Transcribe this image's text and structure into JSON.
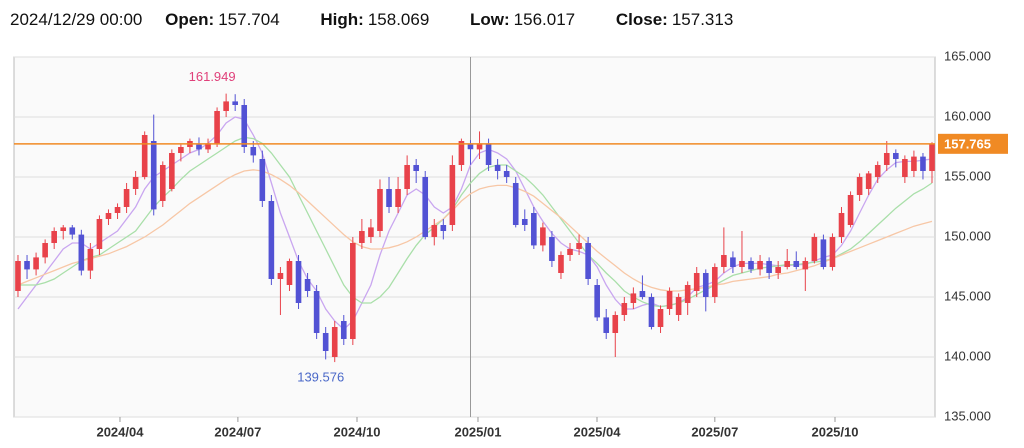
{
  "header": {
    "date": "2024/12/29 00:00",
    "fields": [
      {
        "label": "Open:",
        "value": "157.704"
      },
      {
        "label": "High:",
        "value": "158.069"
      },
      {
        "label": "Low:",
        "value": "156.017"
      },
      {
        "label": "Close:",
        "value": "157.313"
      }
    ]
  },
  "chart_data": {
    "type": "candlestick",
    "up_color": "#e8424a",
    "down_color": "#5252d4",
    "open": [
      145.5,
      148,
      147.3,
      148.3,
      149.5,
      150.5,
      150.8,
      150.2,
      147.2,
      149,
      151.5,
      152,
      152.5,
      154,
      155,
      158,
      153,
      154,
      157,
      157.5,
      157.7,
      157.3,
      157.8,
      160.5,
      161.3,
      161,
      157.5,
      156.5,
      153,
      146.5,
      146,
      148,
      146.5,
      145.5,
      142,
      140,
      143,
      141.5,
      149.5,
      150,
      150.5,
      154,
      152.5,
      154,
      156,
      155,
      150,
      151,
      151,
      156,
      157.704,
      157.3,
      157.8,
      156,
      155.5,
      154.5,
      151.5,
      152,
      149.3,
      150,
      147,
      148.5,
      149,
      149.5,
      146,
      143.3,
      142,
      143.5,
      144.5,
      145.5,
      145,
      142.5,
      144,
      143.5,
      144.5,
      145.5,
      147,
      145,
      147.5,
      148.3,
      147.5,
      148,
      147.3,
      148,
      147,
      147.5,
      148,
      147.3,
      148,
      149.8,
      147.5,
      150,
      151,
      153.5,
      154,
      155,
      156,
      157,
      155,
      155.5,
      156.7,
      155.5
    ],
    "high": [
      148.5,
      148.5,
      148.7,
      149.8,
      150.8,
      151,
      151,
      150.6,
      149.5,
      151.8,
      152.3,
      152.8,
      154.5,
      155.5,
      158.8,
      160.2,
      156.3,
      157.3,
      157.7,
      158.2,
      158.3,
      158.2,
      160.8,
      161.949,
      161.9,
      161.5,
      158,
      157.2,
      153.5,
      147.5,
      148.2,
      148.5,
      147,
      146,
      142.5,
      143,
      143.5,
      150,
      151.5,
      151.5,
      154.8,
      155,
      155,
      156.8,
      156.5,
      155.5,
      151.5,
      151.5,
      156.8,
      158.2,
      158.069,
      158.8,
      158.2,
      156.5,
      156,
      155,
      152.3,
      152.5,
      151.2,
      150.5,
      148.8,
      149.5,
      150.2,
      150,
      146.5,
      144,
      143.8,
      145,
      145.8,
      146.8,
      145.3,
      144.3,
      145.8,
      145.3,
      146.3,
      147.5,
      147.3,
      147.8,
      150.8,
      148.8,
      150.5,
      148.3,
      148.5,
      148.3,
      148,
      149,
      148.8,
      148.3,
      150.3,
      150.2,
      150.3,
      152.5,
      153.8,
      155.3,
      155.5,
      156.3,
      158,
      157.3,
      156.8,
      157.2,
      157,
      157.9
    ],
    "low": [
      145,
      146.5,
      146.8,
      147.8,
      149,
      149.8,
      149.8,
      146.8,
      146.5,
      148.5,
      151,
      151.5,
      152,
      153.5,
      154.8,
      151.8,
      152.5,
      153.8,
      156.3,
      157,
      156.8,
      157,
      157.5,
      160,
      160.5,
      157,
      156.2,
      152.5,
      146,
      143.5,
      145.5,
      144,
      145,
      141.5,
      139.8,
      139.576,
      141,
      141,
      149,
      149.5,
      150,
      152,
      152,
      153.5,
      154.5,
      149.8,
      149.3,
      149.8,
      150.5,
      155.5,
      156.017,
      156.5,
      155.5,
      154.8,
      154.5,
      150.8,
      150.5,
      149,
      148.8,
      147.5,
      146.5,
      148,
      148.5,
      146,
      143,
      141.5,
      140,
      143,
      144,
      144.8,
      142.3,
      142,
      143.5,
      143,
      143.5,
      145,
      143.8,
      144.5,
      147,
      147,
      147,
      147,
      146.8,
      146.5,
      146.5,
      147.3,
      147.3,
      145.5,
      147.8,
      147.3,
      147.2,
      149.5,
      150.8,
      153,
      153.5,
      154.5,
      155.5,
      155.8,
      154.5,
      155,
      154.8,
      154.5
    ],
    "close": [
      148,
      147.3,
      148.3,
      149.5,
      150.5,
      150.8,
      150.2,
      147.2,
      149,
      151.5,
      152,
      152.5,
      154,
      155,
      158.5,
      152.3,
      156,
      157,
      157.5,
      158,
      157.3,
      157.8,
      160.5,
      161.3,
      161,
      157.5,
      156.8,
      153,
      146.5,
      147,
      148,
      144.5,
      145.5,
      142,
      140.5,
      142.5,
      141.5,
      149.5,
      150.5,
      150.8,
      154,
      152.5,
      154,
      156,
      155.5,
      150,
      151,
      150.5,
      156,
      158,
      157.313,
      157.8,
      156,
      155.5,
      155,
      151,
      151,
      149.3,
      150.8,
      148,
      148.5,
      149,
      149.5,
      146.5,
      143.3,
      142,
      143.5,
      144.5,
      145.3,
      145,
      142.5,
      144,
      145.5,
      145,
      146,
      147,
      145,
      147.5,
      148.5,
      147.5,
      148,
      147.3,
      148,
      147,
      147.5,
      148,
      147.5,
      148,
      150,
      147.5,
      150,
      152,
      153.5,
      155,
      155.3,
      156,
      157,
      156.5,
      156.5,
      156.7,
      155.5,
      157.765
    ],
    "series": [
      {
        "color": "#c9a6f0",
        "values": [
          144,
          145,
          146,
          147,
          148,
          149,
          149.5,
          149.5,
          149,
          149.5,
          150,
          150.5,
          151.5,
          152.5,
          154,
          155,
          155.5,
          156,
          156.5,
          157,
          157.3,
          157.8,
          158.5,
          159.5,
          160,
          159.8,
          158.5,
          157,
          154.5,
          152,
          150,
          148,
          146.5,
          145.5,
          144,
          143,
          142.3,
          143,
          144.5,
          146,
          148.5,
          150.5,
          152,
          153.5,
          154,
          153.5,
          152.5,
          152,
          152.5,
          154,
          156,
          157,
          157.3,
          157,
          156.5,
          155.5,
          154,
          152.5,
          151.3,
          150.3,
          149.5,
          149,
          148.8,
          148.5,
          147.5,
          146,
          144.8,
          144,
          144,
          144.3,
          144.5,
          144.2,
          144.3,
          144.5,
          145,
          145.8,
          146,
          146.3,
          147,
          147.5,
          147.8,
          147.8,
          147.8,
          147.7,
          147.6,
          147.6,
          147.7,
          147.7,
          148,
          148.3,
          148.5,
          149.3,
          150.5,
          152,
          153.5,
          154.8,
          155.6,
          156.2,
          156.3,
          156.3,
          156.4,
          156.5
        ]
      },
      {
        "color": "#a9dfa9",
        "values": [
          146,
          146,
          146,
          146.2,
          146.5,
          147,
          147.5,
          148,
          148.3,
          148.5,
          149,
          149.5,
          150,
          150.5,
          151.5,
          152.5,
          153.3,
          154,
          154.8,
          155.5,
          156,
          156.5,
          157,
          157.5,
          158,
          158.3,
          158.2,
          157.8,
          157,
          156,
          155,
          153.5,
          152,
          150.5,
          149,
          147.5,
          146,
          145,
          144.5,
          144.5,
          145,
          145.8,
          147,
          148.2,
          149.3,
          150.2,
          150.8,
          151.5,
          152.3,
          153.5,
          154.5,
          155.3,
          155.8,
          156,
          156,
          155.5,
          155,
          154.3,
          153.5,
          152.5,
          151.5,
          150.5,
          149.5,
          148.5,
          147.8,
          147,
          146.3,
          145.5,
          145,
          144.6,
          144.3,
          144.2,
          144.3,
          144.5,
          144.8,
          145.2,
          145.6,
          146,
          146.4,
          146.8,
          147,
          147.2,
          147.4,
          147.5,
          147.6,
          147.7,
          147.7,
          147.8,
          147.9,
          148,
          148.2,
          148.6,
          149,
          149.6,
          150.3,
          151,
          151.7,
          152.4,
          153,
          153.6,
          154,
          154.5
        ]
      },
      {
        "color": "#f7c7a6",
        "values": [
          146,
          146.3,
          146.6,
          146.9,
          147.2,
          147.5,
          147.8,
          148,
          148.2,
          148.4,
          148.6,
          148.9,
          149.2,
          149.6,
          150,
          150.5,
          151,
          151.6,
          152.2,
          152.8,
          153.3,
          153.8,
          154.3,
          154.8,
          155.2,
          155.5,
          155.6,
          155.5,
          155.2,
          154.8,
          154.3,
          153.7,
          153,
          152.3,
          151.6,
          150.9,
          150.2,
          149.6,
          149.2,
          149,
          149,
          149.1,
          149.3,
          149.6,
          150,
          150.5,
          151,
          151.5,
          152.2,
          153,
          153.6,
          154,
          154.2,
          154.3,
          154.3,
          154.1,
          153.8,
          153.4,
          152.8,
          152.2,
          151.6,
          150.9,
          150.2,
          149.5,
          148.8,
          148.2,
          147.6,
          147,
          146.5,
          146.1,
          145.8,
          145.6,
          145.5,
          145.5,
          145.6,
          145.7,
          145.8,
          146,
          146.1,
          146.3,
          146.4,
          146.5,
          146.6,
          146.7,
          146.9,
          147,
          147.2,
          147.4,
          147.6,
          147.9,
          148.2,
          148.5,
          148.8,
          149.1,
          149.4,
          149.7,
          150,
          150.3,
          150.6,
          150.9,
          151.1,
          151.3
        ]
      }
    ],
    "ylim": [
      135,
      165
    ],
    "yticks": [
      {
        "value": 135,
        "label": "135.000"
      },
      {
        "value": 140,
        "label": "140.000"
      },
      {
        "value": 145,
        "label": "145.000"
      },
      {
        "value": 150,
        "label": "150.000"
      },
      {
        "value": 155,
        "label": "155.000"
      },
      {
        "value": 160,
        "label": "160.000"
      },
      {
        "value": 165,
        "label": "165.000"
      }
    ],
    "xlim": [
      -0.44,
      101.33
    ],
    "xticks": [
      {
        "value": 11.27,
        "label": "2024/04"
      },
      {
        "value": 24.3,
        "label": "2024/07"
      },
      {
        "value": 37.46,
        "label": "2024/10"
      },
      {
        "value": 50.83,
        "label": "2025/01"
      },
      {
        "value": 63.98,
        "label": "2025/04"
      },
      {
        "value": 77.0,
        "label": "2025/07"
      },
      {
        "value": 90.28,
        "label": "2025/10"
      }
    ],
    "grid": true,
    "last_price": {
      "value": 157.765,
      "label": "157.765",
      "color": "#f08a24"
    },
    "annotations": [
      {
        "value": 161.949,
        "label": "161.949",
        "color": "#e0407a",
        "at": "high"
      },
      {
        "value": 139.576,
        "label": "139.576",
        "color": "#4a68c8",
        "at": "low"
      }
    ]
  }
}
